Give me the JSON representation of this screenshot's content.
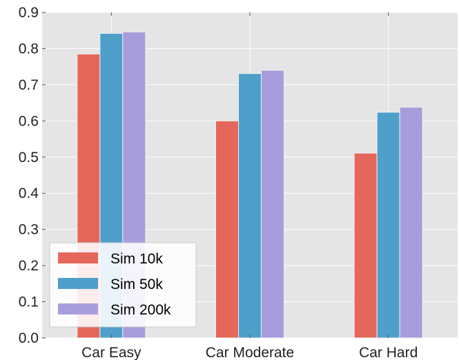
{
  "chart_data": {
    "type": "bar",
    "categories": [
      "Car Easy",
      "Car Moderate",
      "Car Hard"
    ],
    "series": [
      {
        "name": "Sim 10k",
        "values": [
          0.785,
          0.6,
          0.511
        ],
        "color": "#e5665b"
      },
      {
        "name": "Sim 50k",
        "values": [
          0.842,
          0.731,
          0.624
        ],
        "color": "#4f9fcb"
      },
      {
        "name": "Sim 200k",
        "values": [
          0.846,
          0.74,
          0.638
        ],
        "color": "#a89ddc"
      }
    ],
    "ylim": [
      0,
      0.9
    ],
    "yticks": [
      "0.0",
      "0.1",
      "0.2",
      "0.3",
      "0.4",
      "0.5",
      "0.6",
      "0.7",
      "0.8",
      "0.9"
    ],
    "grid": true,
    "legend_position": "lower-left",
    "style": {
      "background": "#e5e5e5",
      "grid_color": "#ffffff"
    }
  }
}
